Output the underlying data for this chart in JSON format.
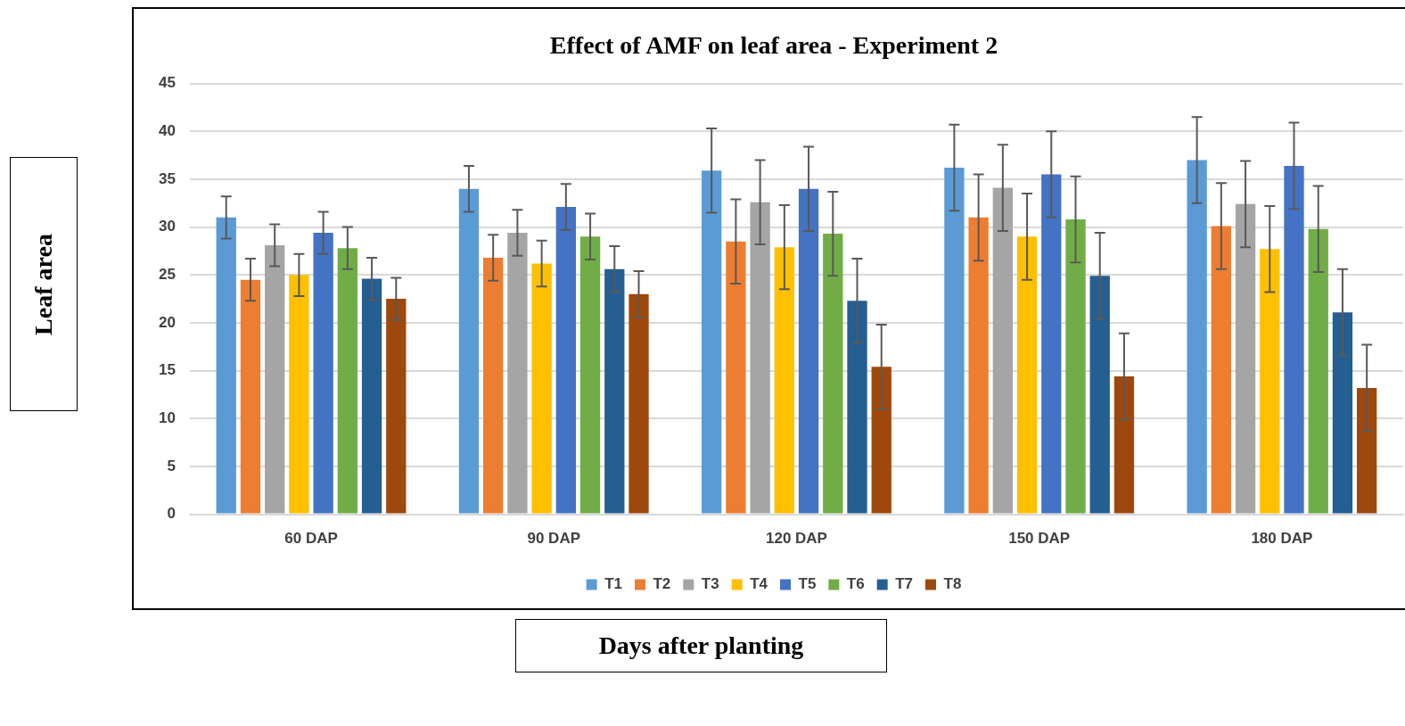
{
  "chart_data": {
    "type": "bar",
    "title": "Effect of AMF on leaf area - Experiment 2",
    "xlabel": "Days after planting",
    "ylabel": "Leaf area",
    "categories": [
      "60 DAP",
      "90 DAP",
      "120 DAP",
      "150 DAP",
      "180 DAP"
    ],
    "series": [
      {
        "name": "T1",
        "color": "#5b9bd5",
        "values": [
          31,
          34,
          35.9,
          36.2,
          37
        ],
        "errors": [
          2.2,
          2.4,
          4.4,
          4.5,
          4.5
        ]
      },
      {
        "name": "T2",
        "color": "#ed7d31",
        "values": [
          24.5,
          26.8,
          28.5,
          31,
          30.1
        ],
        "errors": [
          2.2,
          2.4,
          4.4,
          4.5,
          4.5
        ]
      },
      {
        "name": "T3",
        "color": "#a5a5a5",
        "values": [
          28.1,
          29.4,
          32.6,
          34.1,
          32.4
        ],
        "errors": [
          2.2,
          2.4,
          4.4,
          4.5,
          4.5
        ]
      },
      {
        "name": "T4",
        "color": "#ffc000",
        "values": [
          25,
          26.2,
          27.9,
          29,
          27.7
        ],
        "errors": [
          2.2,
          2.4,
          4.4,
          4.5,
          4.5
        ]
      },
      {
        "name": "T5",
        "color": "#4472c4",
        "values": [
          29.4,
          32.1,
          34,
          35.5,
          36.4
        ],
        "errors": [
          2.2,
          2.4,
          4.4,
          4.5,
          4.5
        ]
      },
      {
        "name": "T6",
        "color": "#70ad47",
        "values": [
          27.8,
          29,
          29.3,
          30.8,
          29.8
        ],
        "errors": [
          2.2,
          2.4,
          4.4,
          4.5,
          4.5
        ]
      },
      {
        "name": "T7",
        "color": "#255e91",
        "values": [
          24.6,
          25.6,
          22.3,
          24.9,
          21.1
        ],
        "errors": [
          2.2,
          2.4,
          4.4,
          4.5,
          4.5
        ]
      },
      {
        "name": "T8",
        "color": "#9e480e",
        "values": [
          22.5,
          23,
          15.4,
          14.4,
          13.2
        ],
        "errors": [
          2.2,
          2.4,
          4.4,
          4.5,
          4.5
        ]
      }
    ],
    "ylim": [
      0,
      45
    ],
    "yticks": [
      0,
      5,
      10,
      15,
      20,
      25,
      30,
      35,
      40,
      45
    ],
    "grid": "y",
    "legend": "bottom"
  }
}
